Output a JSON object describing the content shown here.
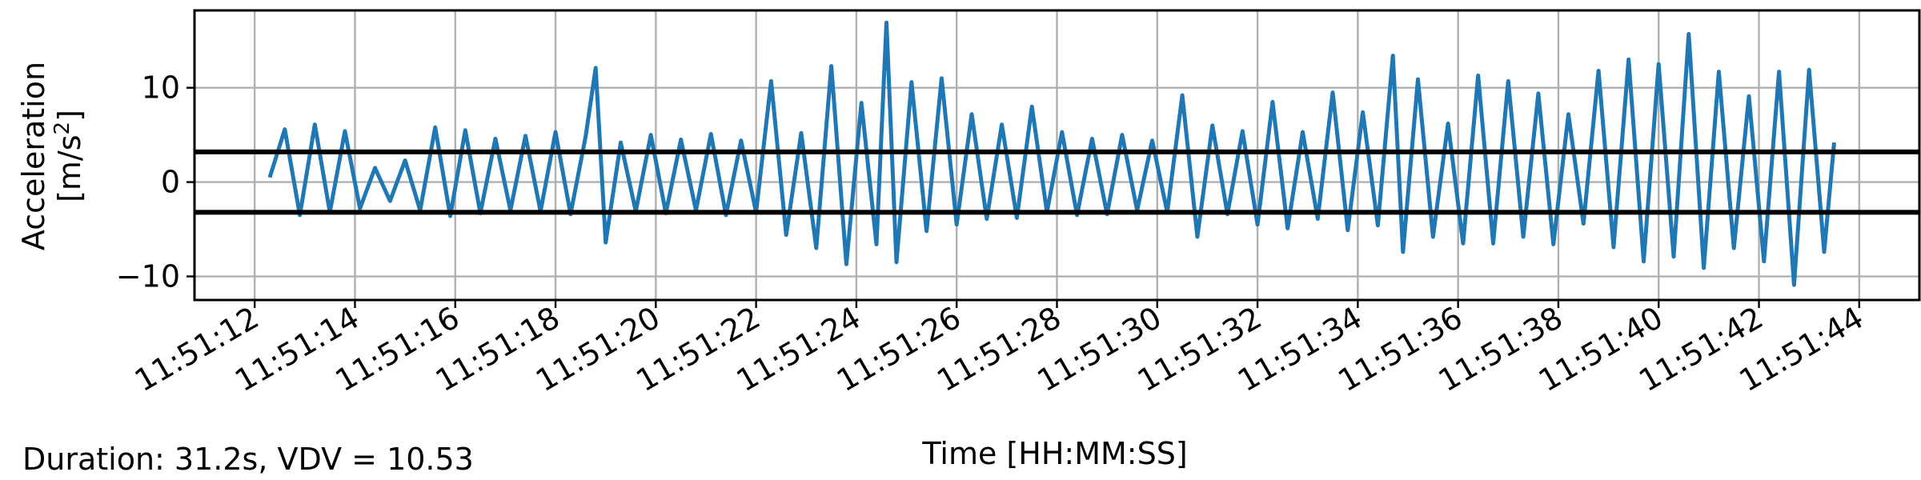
{
  "chart_data": {
    "type": "line",
    "title": "",
    "xlabel": "Time [HH:MM:SS]",
    "ylabel_line1": "Acceleration",
    "ylabel_line2_base": "[m/s",
    "ylabel_line2_sup": "2",
    "ylabel_line2_end": "]",
    "x_unit": "time",
    "xlim": [
      "11:51:10.8",
      "11:51:45.2"
    ],
    "ylim": [
      -12.5,
      18.2
    ],
    "x_ticks": [
      "11:51:12",
      "11:51:14",
      "11:51:16",
      "11:51:18",
      "11:51:20",
      "11:51:22",
      "11:51:24",
      "11:51:26",
      "11:51:28",
      "11:51:30",
      "11:51:32",
      "11:51:34",
      "11:51:36",
      "11:51:38",
      "11:51:40",
      "11:51:42",
      "11:51:44"
    ],
    "y_ticks": [
      -10,
      0,
      10
    ],
    "grid": true,
    "series": [
      {
        "color": "#1f77b4",
        "x": [
          "11:51:12.3",
          "11:51:12.6",
          "11:51:12.9",
          "11:51:13.2",
          "11:51:13.5",
          "11:51:13.8",
          "11:51:14.1",
          "11:51:14.4",
          "11:51:14.7",
          "11:51:15.0",
          "11:51:15.3",
          "11:51:15.6",
          "11:51:15.9",
          "11:51:16.2",
          "11:51:16.5",
          "11:51:16.8",
          "11:51:17.1",
          "11:51:17.4",
          "11:51:17.7",
          "11:51:18.0",
          "11:51:18.3",
          "11:51:18.6",
          "11:51:18.8",
          "11:51:19.0",
          "11:51:19.3",
          "11:51:19.6",
          "11:51:19.9",
          "11:51:20.2",
          "11:51:20.5",
          "11:51:20.8",
          "11:51:21.1",
          "11:51:21.4",
          "11:51:21.7",
          "11:51:22.0",
          "11:51:22.3",
          "11:51:22.6",
          "11:51:22.9",
          "11:51:23.2",
          "11:51:23.5",
          "11:51:23.8",
          "11:51:24.1",
          "11:51:24.4",
          "11:51:24.6",
          "11:51:24.8",
          "11:51:25.1",
          "11:51:25.4",
          "11:51:25.7",
          "11:51:26.0",
          "11:51:26.3",
          "11:51:26.6",
          "11:51:26.9",
          "11:51:27.2",
          "11:51:27.5",
          "11:51:27.8",
          "11:51:28.1",
          "11:51:28.4",
          "11:51:28.7",
          "11:51:29.0",
          "11:51:29.3",
          "11:51:29.6",
          "11:51:29.9",
          "11:51:30.2",
          "11:51:30.5",
          "11:51:30.8",
          "11:51:31.1",
          "11:51:31.4",
          "11:51:31.7",
          "11:51:32.0",
          "11:51:32.3",
          "11:51:32.6",
          "11:51:32.9",
          "11:51:33.2",
          "11:51:33.5",
          "11:51:33.8",
          "11:51:34.1",
          "11:51:34.4",
          "11:51:34.7",
          "11:51:34.9",
          "11:51:35.2",
          "11:51:35.5",
          "11:51:35.8",
          "11:51:36.1",
          "11:51:36.4",
          "11:51:36.7",
          "11:51:37.0",
          "11:51:37.3",
          "11:51:37.6",
          "11:51:37.9",
          "11:51:38.2",
          "11:51:38.5",
          "11:51:38.8",
          "11:51:39.1",
          "11:51:39.4",
          "11:51:39.7",
          "11:51:40.0",
          "11:51:40.3",
          "11:51:40.6",
          "11:51:40.9",
          "11:51:41.2",
          "11:51:41.5",
          "11:51:41.8",
          "11:51:42.1",
          "11:51:42.4",
          "11:51:42.7",
          "11:51:43.0",
          "11:51:43.3",
          "11:51:43.5"
        ],
        "y": [
          0.5,
          5.6,
          -3.5,
          6.1,
          -3.2,
          5.4,
          -2.8,
          1.5,
          -2.0,
          2.3,
          -3.0,
          5.8,
          -3.6,
          5.5,
          -3.3,
          4.6,
          -3.0,
          4.9,
          -3.1,
          5.3,
          -3.4,
          4.8,
          12.1,
          -6.4,
          4.2,
          -3.1,
          5.0,
          -3.3,
          4.5,
          -3.0,
          5.1,
          -3.5,
          4.4,
          -3.2,
          10.7,
          -5.6,
          5.2,
          -7.0,
          12.3,
          -8.7,
          8.4,
          -6.6,
          16.9,
          -8.5,
          10.6,
          -5.2,
          11.0,
          -4.5,
          7.2,
          -3.9,
          6.1,
          -3.8,
          8.0,
          -3.2,
          5.3,
          -3.5,
          4.6,
          -3.4,
          5.0,
          -3.0,
          4.4,
          -3.2,
          9.2,
          -5.8,
          6.0,
          -3.4,
          5.4,
          -4.5,
          8.5,
          -4.9,
          5.3,
          -3.9,
          9.5,
          -5.1,
          7.4,
          -4.6,
          13.4,
          -7.4,
          10.9,
          -5.8,
          6.2,
          -6.5,
          11.3,
          -6.5,
          10.7,
          -5.8,
          9.4,
          -6.6,
          7.2,
          -4.4,
          11.8,
          -6.9,
          13.0,
          -8.4,
          12.5,
          -7.9,
          15.7,
          -9.1,
          11.7,
          -7.0,
          9.1,
          -8.4,
          11.7,
          -10.9,
          11.9,
          -7.4,
          4.2
        ]
      }
    ],
    "hlines": [
      3.2,
      -3.2
    ],
    "hline_color": "#000000"
  },
  "footer": {
    "text": "Duration: 31.2s, VDV = 10.53"
  }
}
